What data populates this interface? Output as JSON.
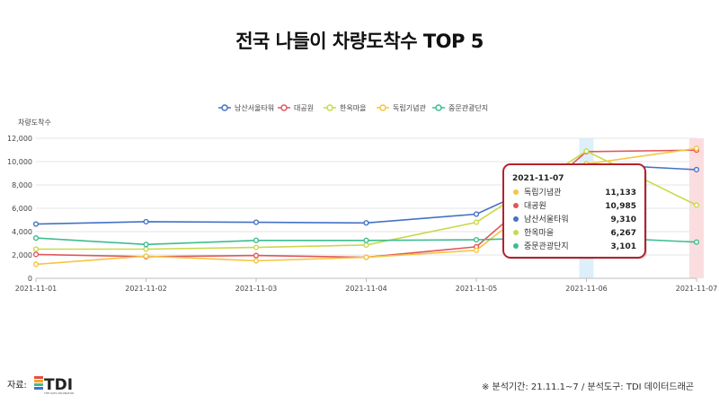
{
  "title": "전국 나들이 차량도착수 TOP 5",
  "source_label": "자료:",
  "logo_text": "TDI",
  "logo_subtext": "THE DATA INCUBATOR",
  "footnote": "※ 분석기간: 21.11.1~7 / 분석도구: TDI 데이터드래곤",
  "chart_data": {
    "type": "line",
    "ylabel": "차량도착수",
    "ylim": [
      0,
      12000
    ],
    "yticks": [
      0,
      2000,
      4000,
      6000,
      8000,
      10000,
      12000
    ],
    "ytick_labels": [
      "0",
      "2,000",
      "4,000",
      "6,000",
      "8,000",
      "10,000",
      "12,000"
    ],
    "x": [
      "2021-11-01",
      "2021-11-02",
      "2021-11-03",
      "2021-11-04",
      "2021-11-05",
      "2021-11-06",
      "2021-11-07"
    ],
    "xtick_labels": [
      "2021-11-01",
      "2021-11-02",
      "2021-11-03",
      "2021-11-04",
      "2021-11-05",
      "2021-11-06",
      "2021-11-07"
    ],
    "grid": true,
    "legend_position": "top",
    "highlight_categories": [
      "2021-11-06",
      "2021-11-07"
    ],
    "series": [
      {
        "name": "남산서울타워",
        "color": "#4472c4",
        "values": [
          4650,
          4850,
          4800,
          4750,
          5500,
          9800,
          9310
        ]
      },
      {
        "name": "대공원",
        "color": "#e0565b",
        "values": [
          2050,
          1850,
          1950,
          1800,
          2700,
          10850,
          10985
        ]
      },
      {
        "name": "한옥마을",
        "color": "#c9d94a",
        "values": [
          2500,
          2500,
          2650,
          2850,
          4800,
          10900,
          6267
        ]
      },
      {
        "name": "독립기념관",
        "color": "#f5c542",
        "values": [
          1200,
          1900,
          1500,
          1800,
          2400,
          9800,
          11133
        ]
      },
      {
        "name": "중문관광단지",
        "color": "#3dbd8f",
        "values": [
          3450,
          2900,
          3250,
          3250,
          3300,
          3550,
          3101
        ]
      }
    ],
    "tooltip": {
      "date": "2021-11-07",
      "items": [
        {
          "name": "독립기념관",
          "value": "11,133",
          "color": "#f5c542"
        },
        {
          "name": "대공원",
          "value": "10,985",
          "color": "#e0565b"
        },
        {
          "name": "남산서울타워",
          "value": "9,310",
          "color": "#4472c4"
        },
        {
          "name": "한옥마을",
          "value": "6,267",
          "color": "#c9d94a"
        },
        {
          "name": "중문관광단지",
          "value": "3,101",
          "color": "#3dbd8f"
        }
      ]
    }
  }
}
